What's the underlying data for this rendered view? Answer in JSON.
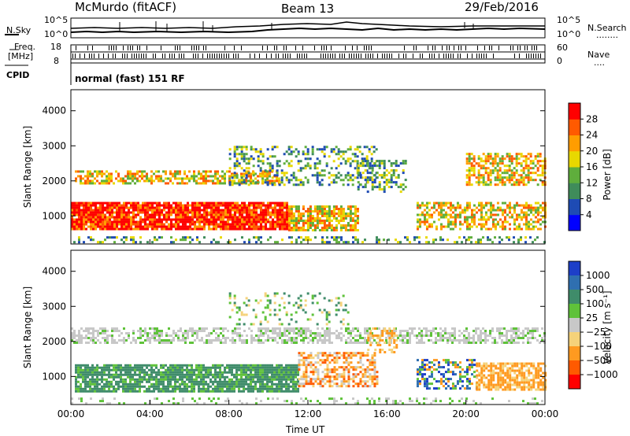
{
  "header": {
    "station": "McMurdo (fitACF)",
    "beam": "Beam 13",
    "date": "29/Feb/2016"
  },
  "noise_panel": {
    "left_label": "N.Sky",
    "left_ticks": [
      "10^5",
      "10^0"
    ],
    "right_label": "N.Search",
    "right_ticks": [
      "10^5",
      "10^0"
    ],
    "right_symbol": "........"
  },
  "freq_panel": {
    "left_label_1": "Freq.",
    "left_label_2": "[MHz]",
    "left_ticks": [
      "18",
      "8"
    ],
    "right_label": "Nave",
    "right_ticks": [
      "60",
      "0"
    ],
    "right_symbol": "....",
    "cpid_label": "CPID",
    "cpid_value": "normal (fast) 151 RF"
  },
  "chart_data": [
    {
      "type": "heatmap",
      "name": "power",
      "ylabel": "Slant Range [km]",
      "ylim": [
        200,
        4600
      ],
      "yticks": [
        "1000",
        "2000",
        "3000",
        "4000"
      ],
      "colorbar": {
        "label": "Power [dB]",
        "ticks": [
          "4",
          "8",
          "12",
          "16",
          "20",
          "24",
          "28"
        ],
        "colors": [
          "#0000ff",
          "#1e4bb4",
          "#3f8c5a",
          "#5fae3c",
          "#e8d800",
          "#ff9d00",
          "#ff5a00",
          "#ff0000"
        ]
      }
    },
    {
      "type": "heatmap",
      "name": "velocity",
      "xlabel": "Time UT",
      "ylabel": "Slant Range [km]",
      "ylim": [
        200,
        4600
      ],
      "xticks": [
        "00:00",
        "04:00",
        "08:00",
        "12:00",
        "16:00",
        "20:00",
        "00:00"
      ],
      "yticks": [
        "1000",
        "2000",
        "3000",
        "4000"
      ],
      "colorbar": {
        "label": "Velocity [m s⁻¹]",
        "ticks": [
          "1000",
          "500",
          "100",
          "25",
          "−25",
          "−100",
          "−500",
          "−1000"
        ],
        "colors": [
          "#1d3fc8",
          "#2f6fb0",
          "#3f8c6a",
          "#5fc23a",
          "#c8c8c8",
          "#f5d27a",
          "#ff9a20",
          "#ff5a00",
          "#ff0000"
        ]
      }
    }
  ]
}
